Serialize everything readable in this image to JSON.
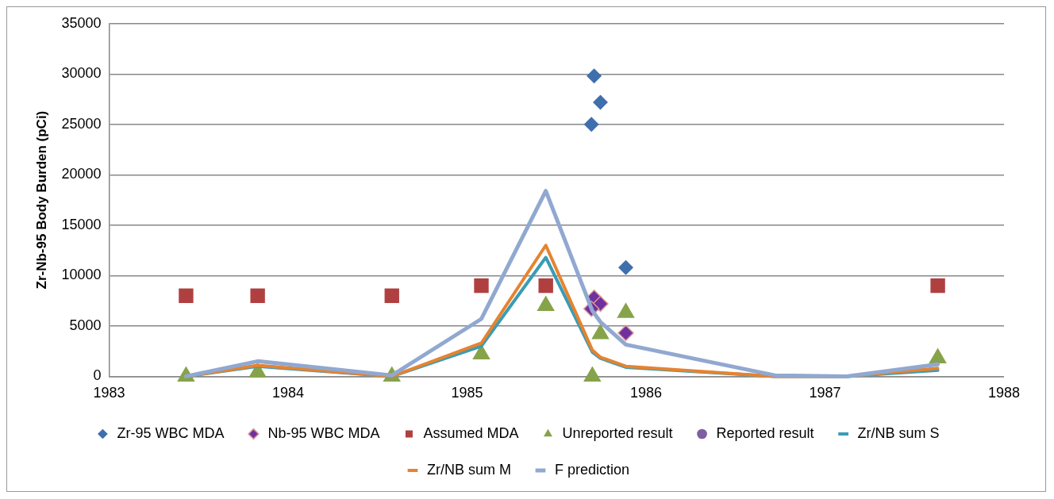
{
  "chart_data": {
    "type": "scatter",
    "ylabel": "Zr-Nb-95 Body Burden (pCi)",
    "xlim": [
      1983,
      1988
    ],
    "xticks": [
      1983,
      1984,
      1985,
      1986,
      1987,
      1988
    ],
    "ylim": [
      0,
      35000
    ],
    "yticks": [
      0,
      5000,
      10000,
      15000,
      20000,
      25000,
      30000,
      35000
    ],
    "grid": "y",
    "legend": "bottom",
    "series": [
      {
        "name": "Zr-95 WBC MDA",
        "type": "scatter",
        "marker": "diamond",
        "color": "#3f6fad",
        "x": [
          1985.71,
          1985.745,
          1985.695,
          1985.887
        ],
        "values": [
          29800,
          27200,
          25000,
          10800
        ]
      },
      {
        "name": "Nb-95 WBC MDA",
        "type": "scatter",
        "marker": "diamond",
        "color": "#7030a0",
        "x": [
          1985.71,
          1985.745,
          1985.695,
          1985.887
        ],
        "values": [
          7800,
          7200,
          6700,
          4300
        ]
      },
      {
        "name": "Assumed MDA",
        "type": "scatter",
        "marker": "square",
        "color": "#b04040",
        "x": [
          1983.43,
          1983.83,
          1984.58,
          1985.08,
          1985.44,
          1987.63
        ],
        "values": [
          8000,
          8000,
          8000,
          9000,
          9000,
          9000
        ]
      },
      {
        "name": "Unreported result",
        "type": "scatter",
        "marker": "triangle",
        "color": "#86a34a",
        "x": [
          1983.43,
          1983.83,
          1984.58,
          1985.08,
          1985.44,
          1985.7,
          1985.745,
          1985.887,
          1987.63
        ],
        "values": [
          0,
          400,
          0,
          2200,
          7000,
          0,
          4200,
          6300,
          1800
        ]
      },
      {
        "name": "Reported result",
        "type": "scatter",
        "marker": "circle",
        "color": "#7f5f9f"
      },
      {
        "name": "Zr/NB sum S",
        "type": "line",
        "marker": "none",
        "color": "#3a9cb5",
        "x": [
          1983.43,
          1983.83,
          1984.58,
          1985.08,
          1985.44,
          1985.7,
          1985.745,
          1985.887,
          1986.72,
          1987.12,
          1987.63
        ],
        "values": [
          0,
          1000,
          0,
          3000,
          11800,
          2400,
          1800,
          900,
          0,
          0,
          600
        ]
      },
      {
        "name": "Zr/NB sum M",
        "type": "line",
        "marker": "none",
        "color": "#e6832f",
        "x": [
          1983.43,
          1983.83,
          1984.58,
          1985.08,
          1985.44,
          1985.7,
          1985.745,
          1985.887,
          1986.72,
          1987.12,
          1987.63
        ],
        "values": [
          0,
          1100,
          0,
          3300,
          13000,
          2600,
          1900,
          1000,
          0,
          0,
          800
        ]
      },
      {
        "name": "F prediction",
        "type": "line",
        "marker": "none",
        "color": "#91a8d0",
        "x": [
          1983.43,
          1983.83,
          1984.58,
          1985.08,
          1985.44,
          1985.7,
          1985.745,
          1985.887,
          1986.72,
          1987.12,
          1987.63
        ],
        "values": [
          0,
          1500,
          100,
          5700,
          18400,
          6500,
          5400,
          3150,
          100,
          0,
          1200
        ]
      }
    ]
  }
}
